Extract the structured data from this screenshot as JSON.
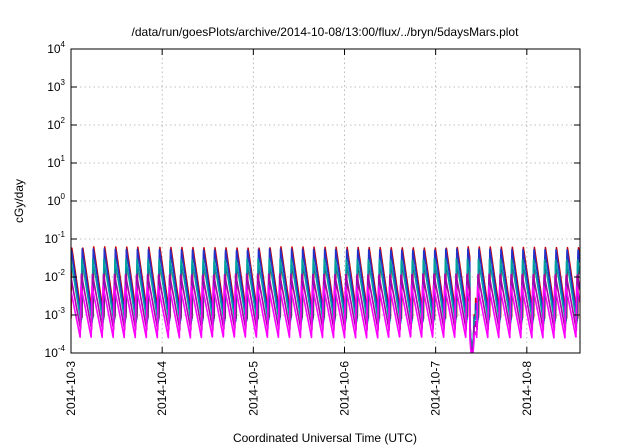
{
  "chart_data": {
    "type": "line",
    "title": "/data/run/goesPlots/archive/2014-10-08/13:00/flux/../bryn/5daysMars.plot",
    "xlabel": "Coordinated Universal Time (UTC)",
    "ylabel": "cGy/day",
    "yscale": "log",
    "grid": true,
    "ylim": [
      0.0001,
      10000
    ],
    "xlim": [
      "2014-10-03",
      "2014-10-08 14:00"
    ],
    "x_ticks": [
      "2014-10-3",
      "2014-10-4",
      "2014-10-5",
      "2014-10-6",
      "2014-10-7",
      "2014-10-8"
    ],
    "y_ticks": [
      {
        "base": "10",
        "exp": "4"
      },
      {
        "base": "10",
        "exp": "3"
      },
      {
        "base": "10",
        "exp": "2"
      },
      {
        "base": "10",
        "exp": "1"
      },
      {
        "base": "10",
        "exp": "0"
      },
      {
        "base": "10",
        "exp": "-1"
      },
      {
        "base": "10",
        "exp": "-2"
      },
      {
        "base": "10",
        "exp": "-3"
      },
      {
        "base": "10",
        "exp": "-4"
      }
    ],
    "sawtooth_period_hours": 2.9,
    "dip": {
      "start": "2014-10-07 09:00",
      "end": "2014-10-07 10:30"
    },
    "series": [
      {
        "color": "#cc0000",
        "peak": 0.062,
        "trough": 0.0008,
        "dip_min": 0.0001
      },
      {
        "color": "#2233cc",
        "peak": 0.055,
        "trough": 0.0007,
        "dip_min": 0.00012
      },
      {
        "color": "#00a0a0",
        "peak": 0.03,
        "trough": 0.0006,
        "dip_min": 0.00015
      },
      {
        "color": "#aa00aa",
        "peak": 0.012,
        "trough": 0.0004,
        "dip_min": 9e-05
      },
      {
        "color": "#ff00ff",
        "peak": 0.006,
        "trough": 0.00025,
        "dip_min": 8e-05
      }
    ]
  }
}
